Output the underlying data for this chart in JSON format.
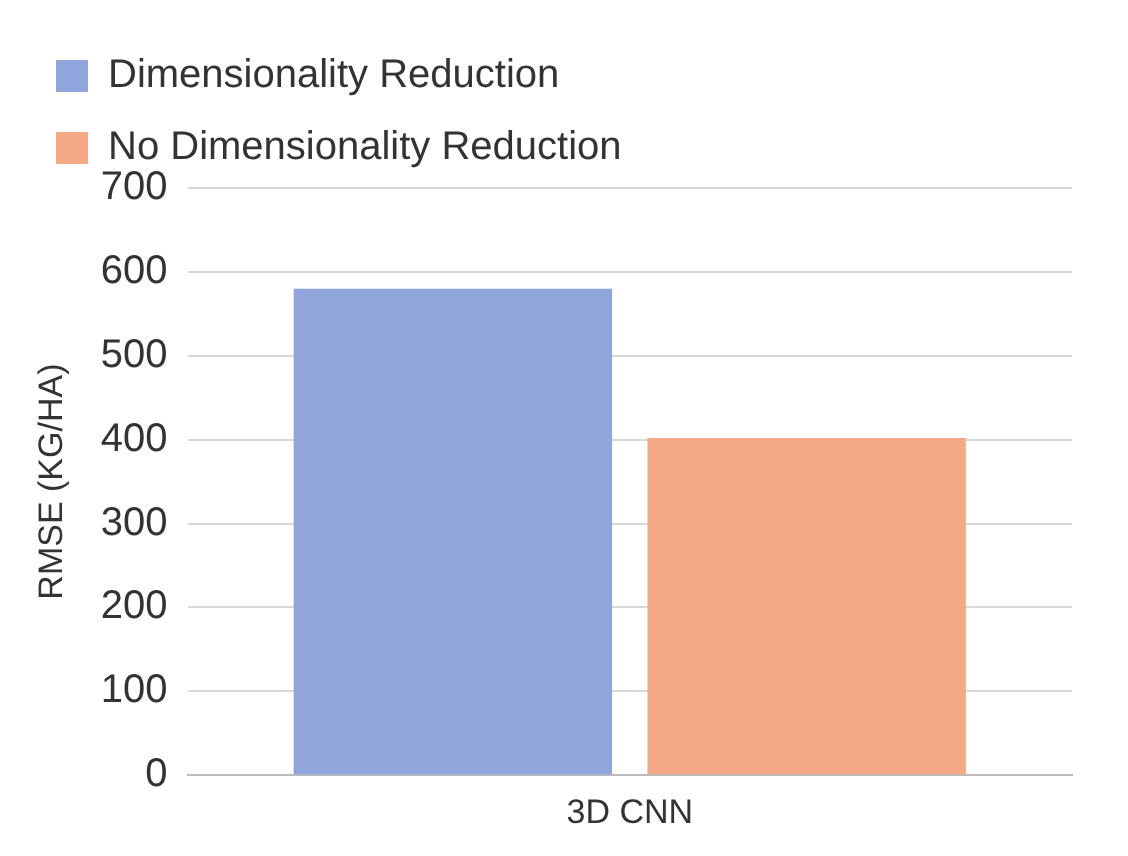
{
  "chart_data": {
    "type": "bar",
    "ylabel": "RMSE (KG/HA)",
    "categories": [
      "3D CNN"
    ],
    "series": [
      {
        "name": "Dimensionality Reduction",
        "color": "#8fa5dc",
        "values": [
          580
        ]
      },
      {
        "name": "No Dimensionality Reduction",
        "color": "#f4a886",
        "values": [
          402
        ]
      }
    ],
    "ylim": [
      0,
      700
    ],
    "yticks": [
      0,
      100,
      200,
      300,
      400,
      500,
      600,
      700
    ],
    "grid": "y",
    "legend": "top left"
  }
}
